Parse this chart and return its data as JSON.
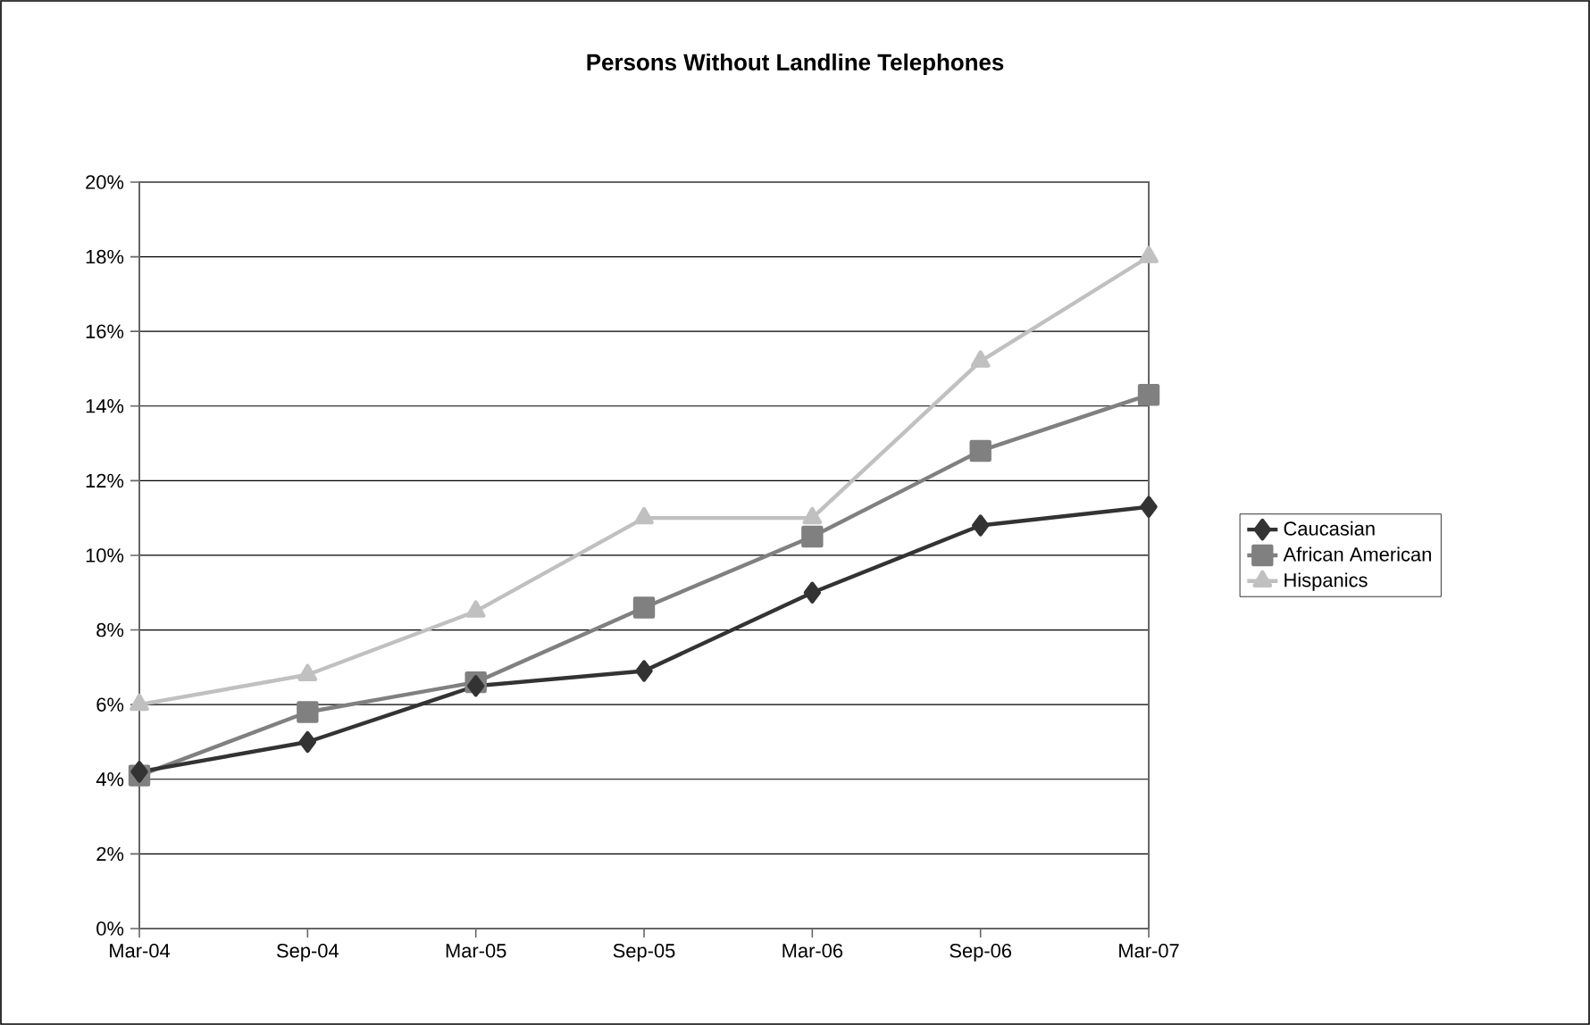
{
  "chart_data": {
    "type": "line",
    "title": "Persons Without Landline Telephones",
    "categories": [
      "Mar-04",
      "Sep-04",
      "Mar-05",
      "Sep-05",
      "Mar-06",
      "Sep-06",
      "Mar-07"
    ],
    "series": [
      {
        "name": "Caucasian",
        "color": "#333333",
        "marker": "diamond",
        "values": [
          4.2,
          5.0,
          6.5,
          6.9,
          9.0,
          10.8,
          11.3
        ]
      },
      {
        "name": "African American",
        "color": "#808080",
        "marker": "square",
        "values": [
          4.1,
          5.8,
          6.6,
          8.6,
          10.5,
          12.8,
          14.3
        ]
      },
      {
        "name": "Hispanics",
        "color": "#c0c0c0",
        "marker": "triangle",
        "values": [
          6.0,
          6.8,
          8.5,
          11.0,
          11.0,
          15.2,
          18.0
        ]
      }
    ],
    "ylim": [
      0,
      20
    ],
    "yticks": [
      {
        "value": 0,
        "label": "0%"
      },
      {
        "value": 2,
        "label": "2%"
      },
      {
        "value": 4,
        "label": "4%"
      },
      {
        "value": 6,
        "label": "6%"
      },
      {
        "value": 8,
        "label": "8%"
      },
      {
        "value": 10,
        "label": "10%"
      },
      {
        "value": 12,
        "label": "12%"
      },
      {
        "value": 14,
        "label": "14%"
      },
      {
        "value": 16,
        "label": "16%"
      },
      {
        "value": 18,
        "label": "18%"
      },
      {
        "value": 20,
        "label": "20%"
      }
    ],
    "grid": "y",
    "legend": "right",
    "line_style": "solid"
  }
}
